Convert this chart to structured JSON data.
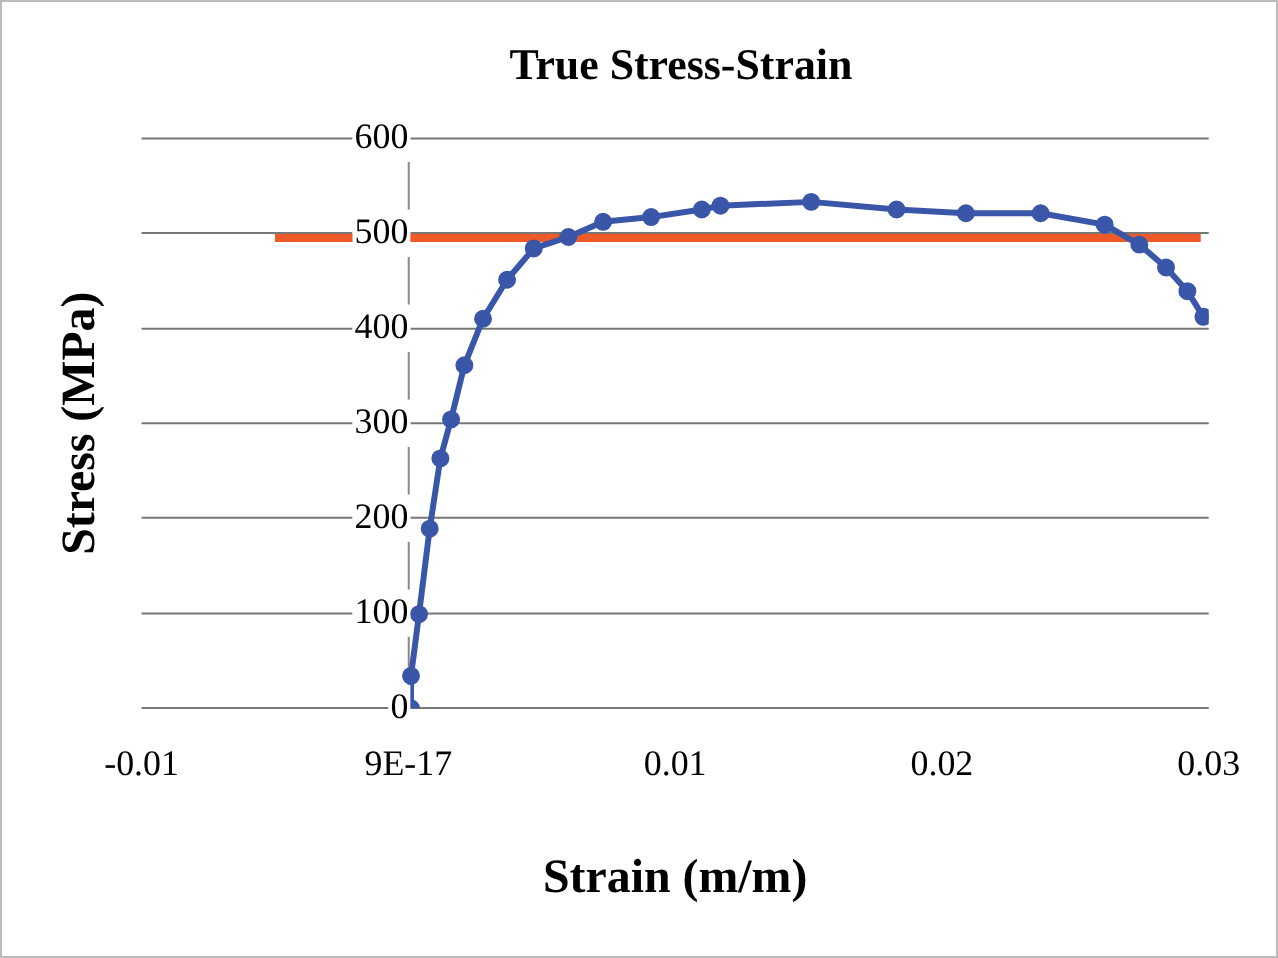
{
  "chart_data": {
    "type": "line",
    "title": "True Stress-Strain",
    "xlabel": "Strain (m/m)",
    "ylabel": "Stress (MPa)",
    "xlim": [
      -0.01,
      0.03
    ],
    "xticks": [
      -0.01,
      {
        "value": 0,
        "label": "9E-17"
      },
      0.01,
      0.02,
      0.03
    ],
    "ylim": [
      0,
      600
    ],
    "yticks": [
      0,
      100,
      200,
      300,
      400,
      500,
      600
    ],
    "grid": "y",
    "series": [
      {
        "color": "#3a56a8",
        "marker": "circle",
        "x": [
          0.0001,
          0.0001,
          0.0004,
          0.0008,
          0.0012,
          0.0016,
          0.0021,
          0.0028,
          0.0037,
          0.0047,
          0.006,
          0.0073,
          0.0091,
          0.011,
          0.0117,
          0.0151,
          0.0183,
          0.0209,
          0.0237,
          0.0261,
          0.0274,
          0.0284,
          0.0292,
          0.0298
        ],
        "values": [
          0,
          34,
          99,
          189,
          263,
          304,
          361,
          410,
          451,
          484,
          496,
          512,
          517,
          525,
          529,
          533,
          525,
          521,
          521,
          509,
          488,
          464,
          439,
          412
        ]
      },
      {
        "color": "#f05a28",
        "marker": "none",
        "x": [
          -0.005,
          0.0297
        ],
        "values": [
          495,
          495
        ]
      }
    ]
  }
}
